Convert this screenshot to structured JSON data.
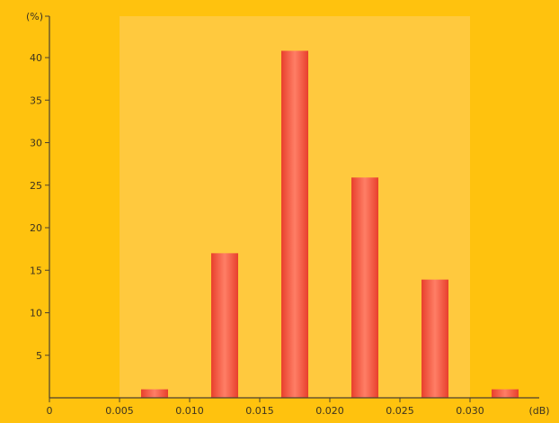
{
  "chart_data": {
    "type": "bar",
    "title": "",
    "xlabel": "",
    "ylabel": "",
    "x_unit": "(dB)",
    "y_unit": "(%)",
    "x": [
      0.0075,
      0.0125,
      0.0175,
      0.0225,
      0.0275,
      0.0325
    ],
    "values": [
      1,
      17,
      40.8,
      25.9,
      13.9,
      1
    ],
    "xlim": [
      0,
      0.0345
    ],
    "ylim": [
      0,
      45
    ],
    "x_ticks": [
      "0",
      "0.005",
      "0.010",
      "0.015",
      "0.020",
      "0.025",
      "0.030"
    ],
    "x_tick_values": [
      0,
      0.005,
      0.01,
      0.015,
      0.02,
      0.025,
      0.03
    ],
    "y_ticks": [
      5,
      10,
      15,
      20,
      25,
      30,
      35,
      40
    ],
    "highlight_range": [
      0.005,
      0.03
    ],
    "grid": false,
    "colors": {
      "background": "#FFC20E",
      "highlight": "#FFC93E",
      "bar_dark": "#E8402C",
      "bar_light": "#FF7E66",
      "axis": "#4a4030",
      "text": "#3d3320"
    }
  }
}
